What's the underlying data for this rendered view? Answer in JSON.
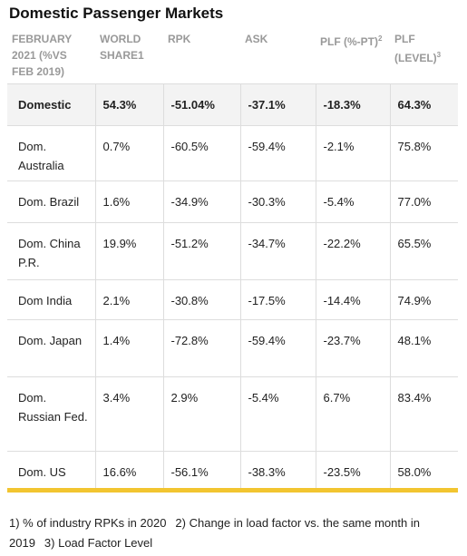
{
  "title": "Domestic Passenger Markets",
  "table": {
    "header": [
      {
        "text": "FEBRUARY 2021 (%VS FEB 2019)"
      },
      {
        "text": "WORLD SHARE1"
      },
      {
        "text": "RPK"
      },
      {
        "text": "ASK"
      },
      {
        "text": "PLF (%-PT)",
        "sup": "2"
      },
      {
        "text": "PLF (LEVEL)",
        "sup": "3"
      }
    ],
    "rows": [
      [
        "Domestic",
        "54.3%",
        "-51.04%",
        "-37.1%",
        "-18.3%",
        "64.3%"
      ],
      [
        "Dom. Australia",
        "0.7%",
        "-60.5%",
        "-59.4%",
        "-2.1%",
        "75.8%"
      ],
      [
        "Dom. Brazil",
        "1.6%",
        "-34.9%",
        "-30.3%",
        "-5.4%",
        "77.0%"
      ],
      [
        "Dom. China P.R.",
        "19.9%",
        "-51.2%",
        "-34.7%",
        "-22.2%",
        "65.5%"
      ],
      [
        "Dom India",
        "2.1%",
        "-30.8%",
        "-17.5%",
        "-14.4%",
        "74.9%"
      ],
      [
        "Dom. Japan",
        "1.4%",
        "-72.8%",
        "-59.4%",
        "-23.7%",
        "48.1%"
      ],
      [
        "Dom. Russian Fed.",
        "3.4%",
        "2.9%",
        "-5.4%",
        "6.7%",
        "83.4%"
      ],
      [
        "Dom. US",
        "16.6%",
        "-56.1%",
        "-38.3%",
        "-23.5%",
        "58.0%"
      ]
    ]
  },
  "footnotes": [
    "1) % of industry RPKs in 2020",
    "2) Change in load factor vs. the same month in 2019",
    "3) Load Factor Level"
  ]
}
